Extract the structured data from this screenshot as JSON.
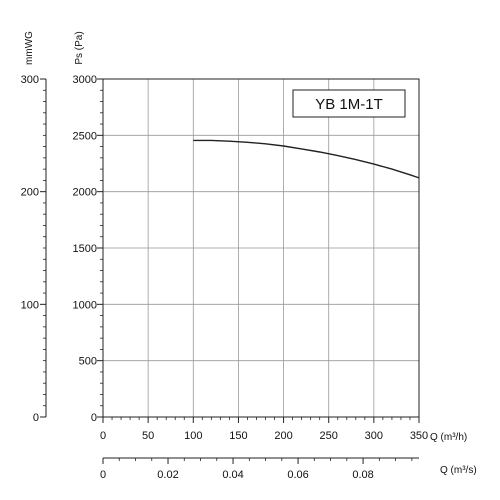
{
  "chart_data": {
    "type": "line",
    "title": "YB 1M-1T",
    "xlabel": "Q (m³/h)",
    "ylabel": "Ps (Pa)",
    "xlim": [
      0,
      350
    ],
    "ylim": [
      0,
      3000
    ],
    "grid": true,
    "x_ticks": [
      "0",
      "50",
      "100",
      "150",
      "200",
      "250",
      "300",
      "350"
    ],
    "y_ticks": [
      "0",
      "500",
      "1000",
      "1500",
      "2000",
      "2500",
      "3000"
    ],
    "secondary_y": {
      "label": "mmWG",
      "ylim": [
        0,
        300
      ],
      "ticks": [
        "0",
        "100",
        "200",
        "300"
      ]
    },
    "secondary_x": {
      "label": "Q (m³/s)",
      "xlim": [
        0,
        0.0972
      ],
      "ticks": [
        "0",
        "0.02",
        "0.04",
        "0.06",
        "0.08"
      ]
    },
    "series": [
      {
        "x": [
          100,
          120,
          140,
          160,
          180,
          200,
          220,
          240,
          260,
          280,
          300,
          320,
          340,
          350
        ],
        "y": [
          2455,
          2455,
          2448,
          2438,
          2425,
          2405,
          2380,
          2352,
          2320,
          2285,
          2245,
          2200,
          2150,
          2122
        ]
      }
    ]
  }
}
